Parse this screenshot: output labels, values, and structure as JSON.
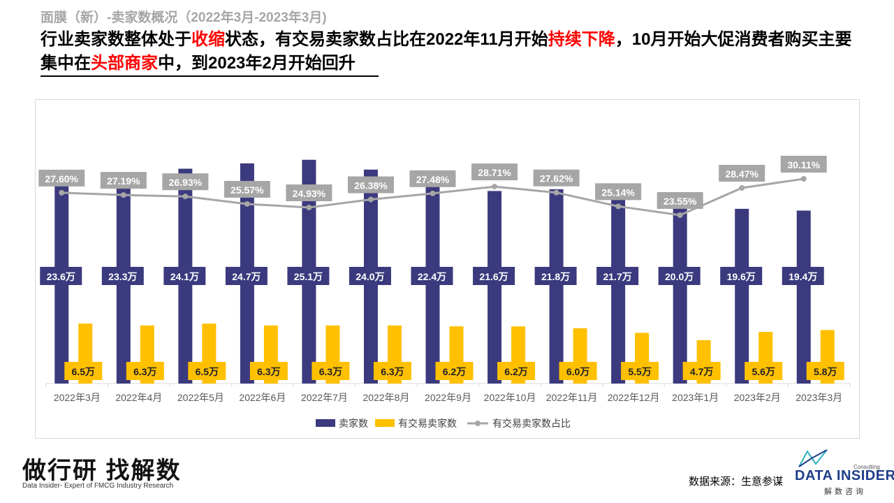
{
  "header": {
    "subtitle": "面膜（新）-卖家数概况（2022年3月-2023年3月)",
    "headline_parts": [
      {
        "text": "行业卖家数整体处于",
        "highlight": false
      },
      {
        "text": "收缩",
        "highlight": true
      },
      {
        "text": "状态，有交易卖家数占比在2022年11月开始",
        "highlight": false
      },
      {
        "text": "持续下降",
        "highlight": true
      },
      {
        "text": "，10月开始大促消费者购买主要集中在",
        "highlight": false
      },
      {
        "text": "头部商家",
        "highlight": true
      },
      {
        "text": "中，到2023年2月开始回升",
        "highlight": false
      }
    ]
  },
  "chart_data": {
    "type": "bar",
    "categories": [
      "2022年3月",
      "2022年4月",
      "2022年5月",
      "2022年6月",
      "2022年7月",
      "2022年8月",
      "2022年9月",
      "2022年10月",
      "2022年11月",
      "2022年12月",
      "2023年1月",
      "2023年2月",
      "2023年3月"
    ],
    "series": [
      {
        "name": "卖家数",
        "type": "bar",
        "color": "#3b3a7e",
        "values": [
          23.6,
          23.3,
          24.1,
          24.7,
          25.1,
          24.0,
          22.4,
          21.6,
          21.8,
          21.7,
          20.0,
          19.6,
          19.4
        ],
        "labels": [
          "23.6万",
          "23.3万",
          "24.1万",
          "24.7万",
          "25.1万",
          "24.0万",
          "22.4万",
          "21.6万",
          "21.8万",
          "21.7万",
          "20.0万",
          "19.6万",
          "19.4万"
        ]
      },
      {
        "name": "有交易卖家数",
        "type": "bar",
        "color": "#ffc000",
        "values": [
          6.5,
          6.3,
          6.5,
          6.3,
          6.3,
          6.3,
          6.2,
          6.2,
          6.0,
          5.5,
          4.7,
          5.6,
          5.8
        ],
        "labels": [
          "6.5万",
          "6.3万",
          "6.5万",
          "6.3万",
          "6.3万",
          "6.3万",
          "6.2万",
          "6.2万",
          "6.0万",
          "5.5万",
          "4.7万",
          "5.6万",
          "5.8万"
        ]
      },
      {
        "name": "有交易卖家数占比",
        "type": "line",
        "color": "#a6a6a6",
        "values": [
          27.6,
          27.19,
          26.93,
          25.57,
          24.93,
          26.38,
          27.48,
          28.71,
          27.62,
          25.14,
          23.55,
          28.47,
          30.11
        ],
        "labels": [
          "27.60%",
          "27.19%",
          "26.93%",
          "25.57%",
          "24.93%",
          "26.38%",
          "27.48%",
          "28.71%",
          "27.62%",
          "25.14%",
          "23.55%",
          "28.47%",
          "30.11%"
        ]
      }
    ],
    "legend_position": "bottom",
    "grid": false
  },
  "footer": {
    "brand_cn": "做行研 找解数",
    "brand_en": "Data Insider- Expert of FMCG Industry Research",
    "source": "数据来源：生意参谋",
    "logo_name": "DATA INSIDER",
    "logo_sub": "解数咨询",
    "logo_consult": "Consulting"
  }
}
